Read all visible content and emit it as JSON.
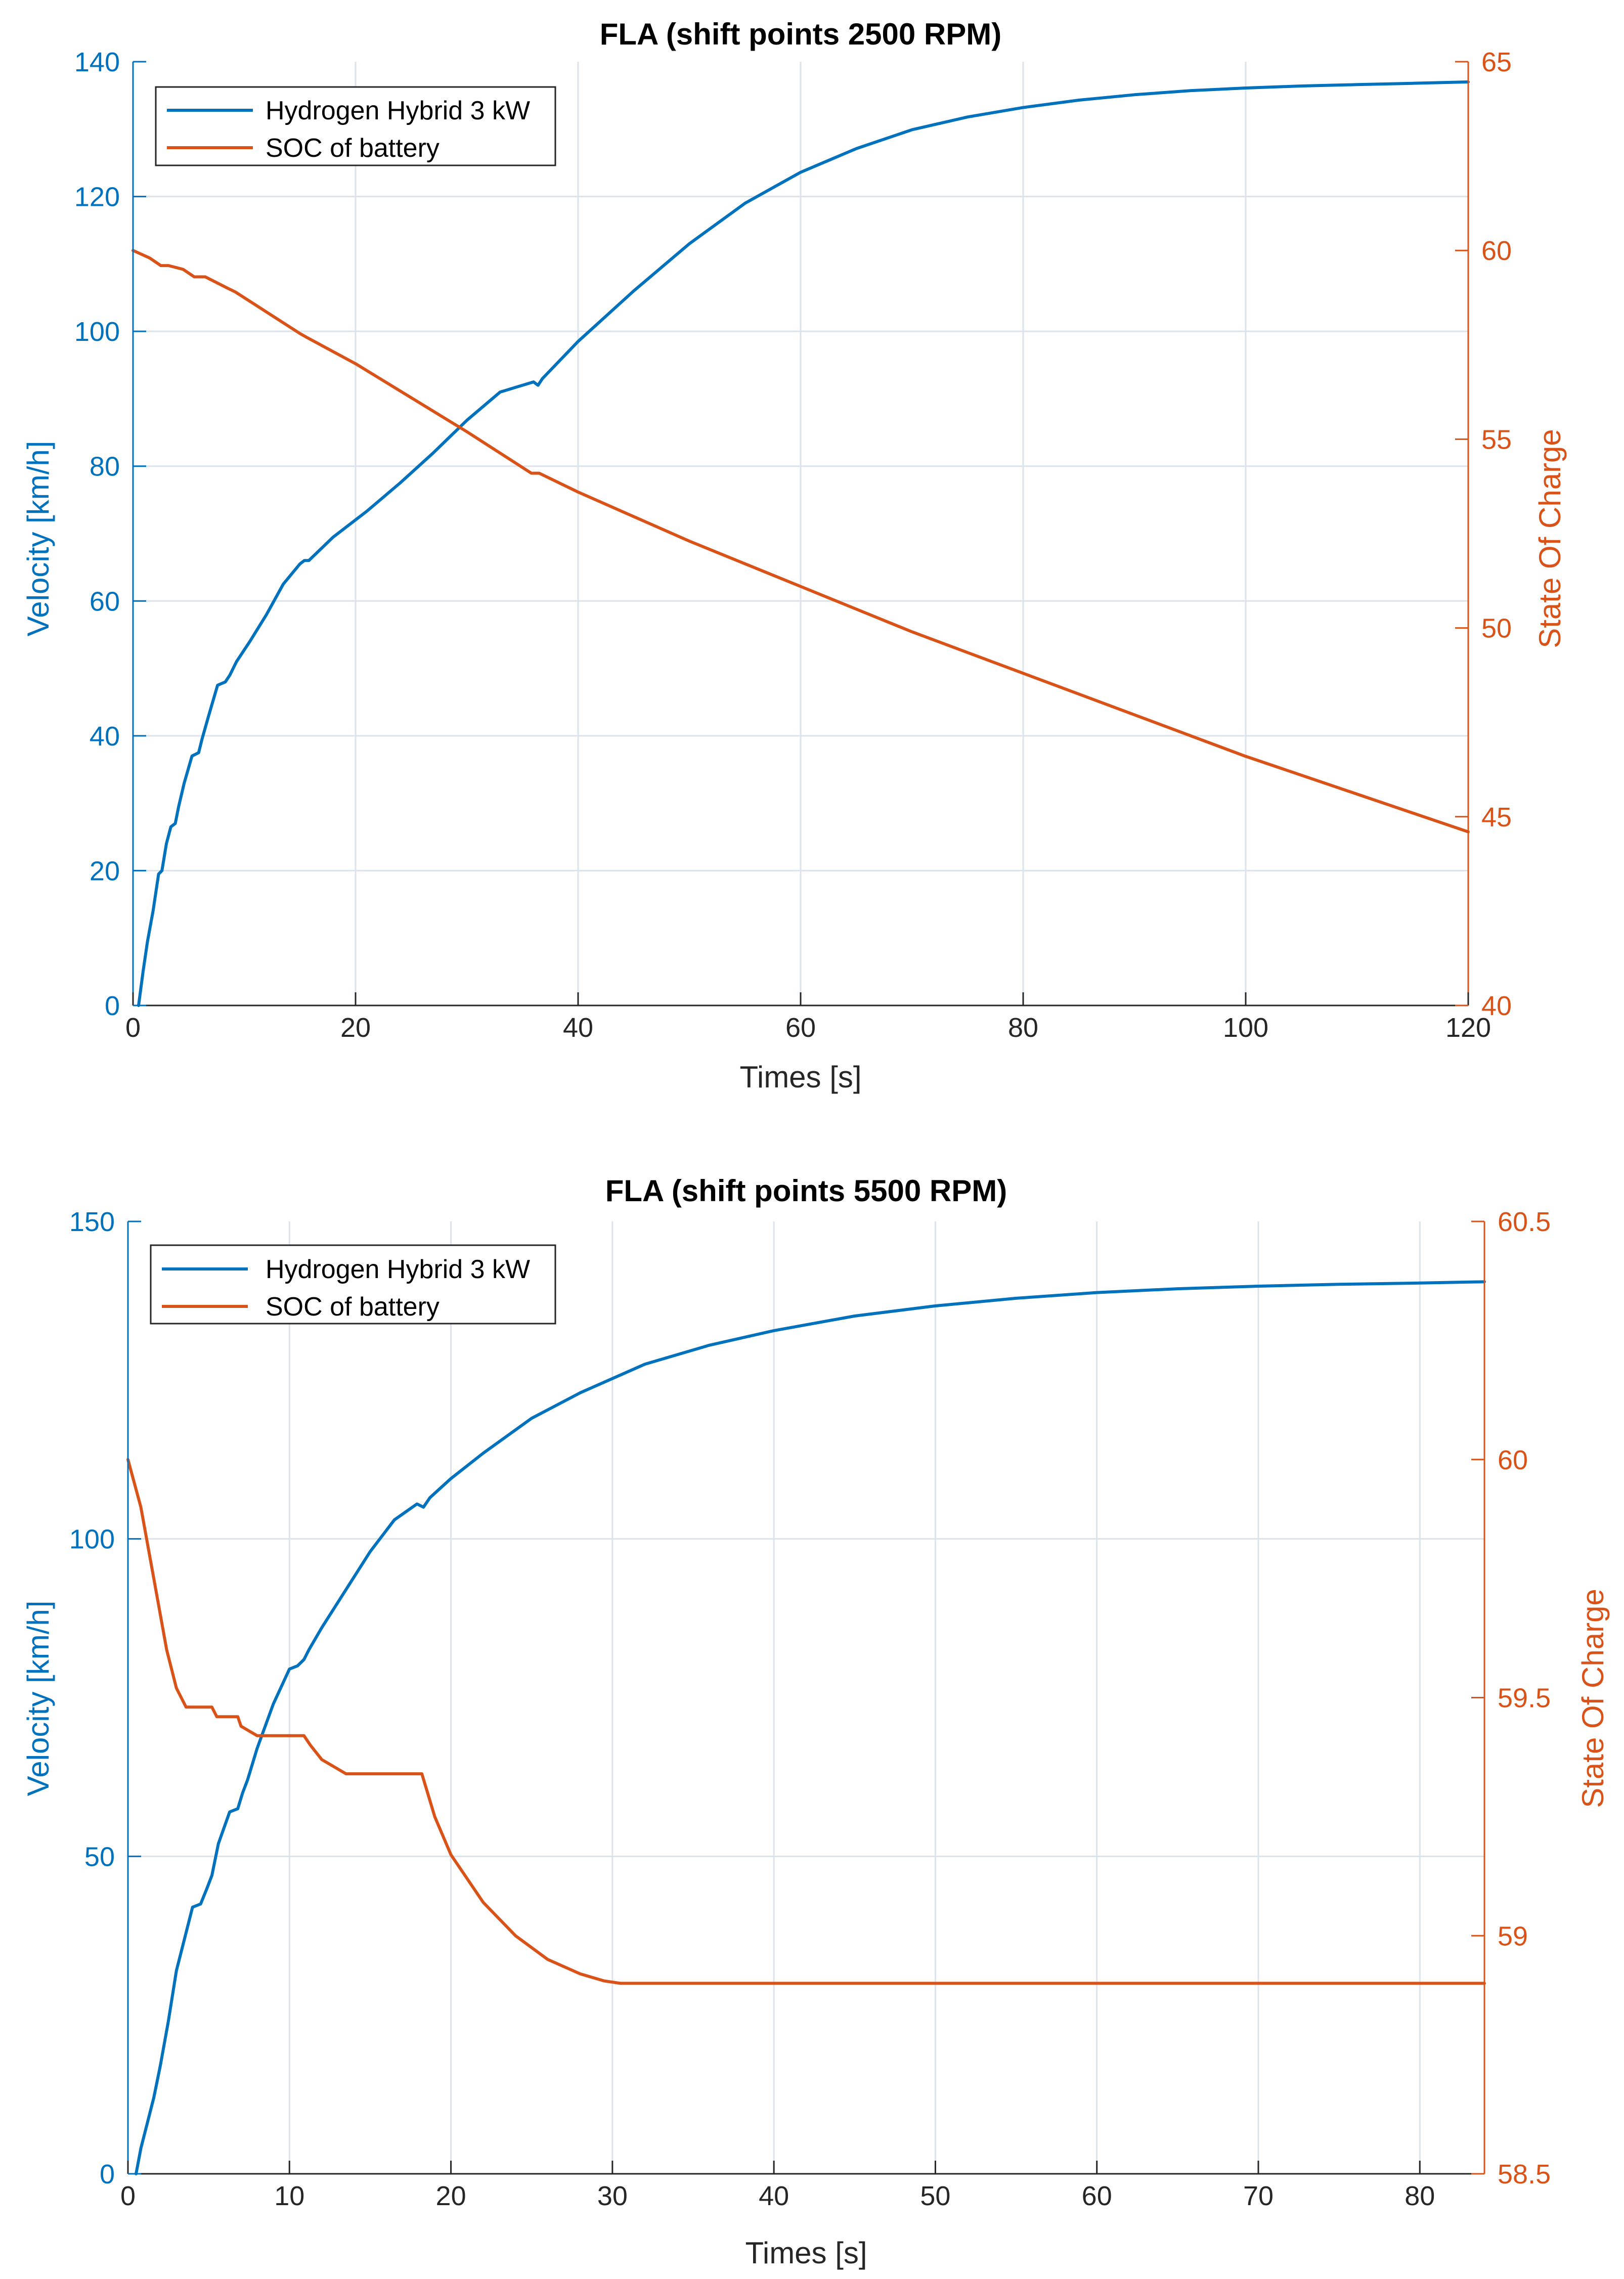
{
  "colors": {
    "blue": "#0072BD",
    "orange": "#D95319",
    "grid": "#DCE3EA",
    "frame": "#262626"
  },
  "chart_data": [
    {
      "type": "line",
      "title": "FLA (shift points 2500 RPM)",
      "xlabel": "Times [s]",
      "ylabel": "Velocity [km/h]",
      "y2label": "State Of Charge",
      "xlim": [
        0,
        120
      ],
      "ylim": [
        0,
        140
      ],
      "y2lim": [
        40,
        65
      ],
      "xticks": [
        0,
        20,
        40,
        60,
        80,
        100,
        120
      ],
      "yticks": [
        0,
        20,
        40,
        60,
        80,
        100,
        120,
        140
      ],
      "y2ticks": [
        40,
        45,
        50,
        55,
        60,
        65
      ],
      "grid": true,
      "legend_location": "top-left",
      "series": [
        {
          "name": "Hydrogen Hybrid 3 kW",
          "axis": "left",
          "x": [
            0.5,
            0.9,
            1.3,
            1.8,
            2.3,
            2.6,
            3.0,
            3.4,
            3.8,
            4.1,
            4.6,
            5.3,
            5.9,
            6.2,
            6.8,
            7.6,
            8.3,
            8.7,
            9.3,
            10.5,
            12.0,
            13.5,
            15.0,
            15.4,
            15.8,
            18.0,
            21.0,
            24.0,
            27.0,
            30.0,
            33.0,
            36.0,
            36.4,
            36.8,
            40.0,
            45.0,
            50.0,
            55.0,
            60.0,
            65.0,
            70.0,
            75.0,
            80.0,
            85.0,
            90.0,
            95.0,
            100.0,
            105.0,
            110.0,
            115.0,
            120.0
          ],
          "values": [
            0,
            5,
            9.5,
            14,
            19.5,
            20,
            24,
            26.5,
            27,
            29.5,
            33,
            37,
            37.5,
            39.5,
            43,
            47.5,
            48,
            49,
            51,
            54,
            58,
            62.5,
            65.5,
            66,
            66,
            69.5,
            73.3,
            77.5,
            82,
            86.8,
            91,
            92.5,
            92,
            93,
            98.5,
            106,
            113,
            119,
            123.6,
            127.1,
            129.9,
            131.8,
            133.2,
            134.3,
            135.1,
            135.7,
            136.1,
            136.4,
            136.6,
            136.8,
            137.0
          ]
        },
        {
          "name": "SOC of battery",
          "axis": "right",
          "x": [
            0,
            1.5,
            2.5,
            3.2,
            4.5,
            5.5,
            6.5,
            8.5,
            9.2,
            15.0,
            15.6,
            20.0,
            25.0,
            30.0,
            35.8,
            36.5,
            40.0,
            50.0,
            60.0,
            70.0,
            80.0,
            90.0,
            100.0,
            110.0,
            120.0
          ],
          "values": [
            60.0,
            59.8,
            59.6,
            59.6,
            59.5,
            59.3,
            59.3,
            59.0,
            58.9,
            57.8,
            57.7,
            57.0,
            56.1,
            55.2,
            54.1,
            54.1,
            53.6,
            52.3,
            51.1,
            49.9,
            48.8,
            47.7,
            46.6,
            45.6,
            44.6
          ]
        }
      ]
    },
    {
      "type": "line",
      "title": "FLA (shift points 5500 RPM)",
      "xlabel": "Times [s]",
      "ylabel": "Velocity [km/h]",
      "y2label": "State Of Charge",
      "xlim": [
        0,
        84
      ],
      "ylim": [
        0,
        150
      ],
      "y2lim": [
        58.5,
        60.5
      ],
      "xticks": [
        0,
        10,
        20,
        30,
        40,
        50,
        60,
        70,
        80
      ],
      "yticks": [
        0,
        50,
        100,
        150
      ],
      "y2ticks": [
        58.5,
        59,
        59.5,
        60,
        60.5
      ],
      "grid": true,
      "legend_location": "top-left",
      "series": [
        {
          "name": "Hydrogen Hybrid 3 kW",
          "axis": "left",
          "x": [
            0.5,
            0.8,
            1.2,
            1.6,
            2.0,
            2.5,
            3.0,
            3.5,
            4.0,
            4.5,
            4.9,
            5.2,
            5.6,
            6.3,
            6.8,
            7.1,
            7.4,
            8.0,
            9.0,
            10.0,
            10.5,
            10.9,
            11.2,
            12.0,
            13.5,
            15.0,
            16.5,
            17.9,
            18.3,
            18.7,
            20.0,
            22.0,
            25.0,
            28.0,
            32.0,
            36.0,
            40.0,
            45.0,
            50.0,
            55.0,
            60.0,
            65.0,
            70.0,
            75.0,
            80.0,
            84.0
          ],
          "values": [
            0,
            4,
            8,
            12,
            17,
            24,
            32,
            37,
            42,
            42.5,
            45,
            47,
            52,
            57,
            57.5,
            60,
            62,
            67,
            74,
            79.5,
            80,
            81,
            82.5,
            86,
            92,
            98,
            103,
            105.5,
            105,
            106.5,
            109.5,
            113.5,
            119,
            123,
            127.5,
            130.5,
            132.8,
            135.1,
            136.7,
            137.9,
            138.8,
            139.4,
            139.8,
            140.1,
            140.3,
            140.5
          ]
        },
        {
          "name": "SOC of battery",
          "axis": "right",
          "x": [
            0,
            0.8,
            1.6,
            2.4,
            3.0,
            3.6,
            4.0,
            5.2,
            5.5,
            6.8,
            7.0,
            7.5,
            8.0,
            10.9,
            11.3,
            12.0,
            13.0,
            13.5,
            18.2,
            19.0,
            20.0,
            22.0,
            24.0,
            26.0,
            28.0,
            29.5,
            30.5,
            40.0,
            60.0,
            84.0
          ],
          "values": [
            60.0,
            59.9,
            59.75,
            59.6,
            59.52,
            59.48,
            59.48,
            59.48,
            59.46,
            59.46,
            59.44,
            59.43,
            59.42,
            59.42,
            59.4,
            59.37,
            59.35,
            59.34,
            59.34,
            59.25,
            59.17,
            59.07,
            59.0,
            58.95,
            58.92,
            58.905,
            58.9,
            58.9,
            58.9,
            58.9
          ]
        }
      ]
    }
  ]
}
